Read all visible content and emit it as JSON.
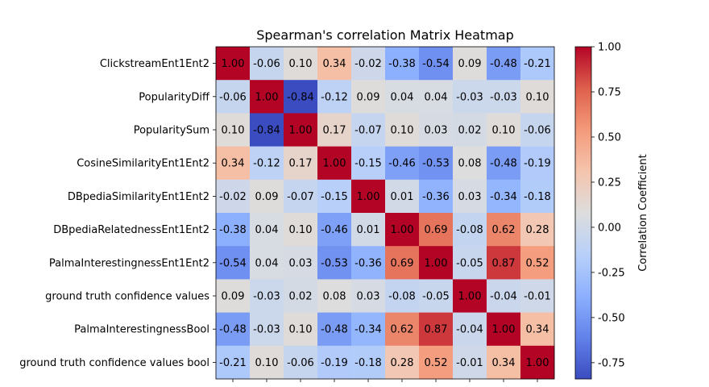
{
  "chart_data": {
    "type": "heatmap",
    "title": "Spearman's correlation Matrix Heatmap",
    "labels": [
      "ClickstreamEnt1Ent2",
      "PopularityDiff",
      "PopularitySum",
      "CosineSimilarityEnt1Ent2",
      "DBpediaSimilarityEnt1Ent2",
      "DBpediaRelatednessEnt1Ent2",
      "PalmaInterestingnessEnt1Ent2",
      "ground truth confidence values",
      "PalmaInterestingnessBool",
      "ground truth confidence values bool"
    ],
    "matrix": [
      [
        "1.00",
        "-0.06",
        "0.10",
        "0.34",
        "-0.02",
        "-0.38",
        "-0.54",
        "0.09",
        "-0.48",
        "-0.21"
      ],
      [
        "-0.06",
        "1.00",
        "-0.84",
        "-0.12",
        "0.09",
        "0.04",
        "0.04",
        "-0.03",
        "-0.03",
        "0.10"
      ],
      [
        "0.10",
        "-0.84",
        "1.00",
        "0.17",
        "-0.07",
        "0.10",
        "0.03",
        "0.02",
        "0.10",
        "-0.06"
      ],
      [
        "0.34",
        "-0.12",
        "0.17",
        "1.00",
        "-0.15",
        "-0.46",
        "-0.53",
        "0.08",
        "-0.48",
        "-0.19"
      ],
      [
        "-0.02",
        "0.09",
        "-0.07",
        "-0.15",
        "1.00",
        "0.01",
        "-0.36",
        "0.03",
        "-0.34",
        "-0.18"
      ],
      [
        "-0.38",
        "0.04",
        "0.10",
        "-0.46",
        "0.01",
        "1.00",
        "0.69",
        "-0.08",
        "0.62",
        "0.28"
      ],
      [
        "-0.54",
        "0.04",
        "0.03",
        "-0.53",
        "-0.36",
        "0.69",
        "1.00",
        "-0.05",
        "0.87",
        "0.52"
      ],
      [
        "0.09",
        "-0.03",
        "0.02",
        "0.08",
        "0.03",
        "-0.08",
        "-0.05",
        "1.00",
        "-0.04",
        "-0.01"
      ],
      [
        "-0.48",
        "-0.03",
        "0.10",
        "-0.48",
        "-0.34",
        "0.62",
        "0.87",
        "-0.04",
        "1.00",
        "0.34"
      ],
      [
        "-0.21",
        "0.10",
        "-0.06",
        "-0.19",
        "-0.18",
        "0.28",
        "0.52",
        "-0.01",
        "0.34",
        "1.00"
      ]
    ],
    "colorbar": {
      "label": "Correlation Coefficient",
      "min": -0.84,
      "max": 1.0,
      "ticks": [
        "1.00",
        "0.75",
        "0.50",
        "0.25",
        "0.00",
        "-0.25",
        "-0.50",
        "-0.75"
      ]
    },
    "colormap": "coolwarm"
  }
}
